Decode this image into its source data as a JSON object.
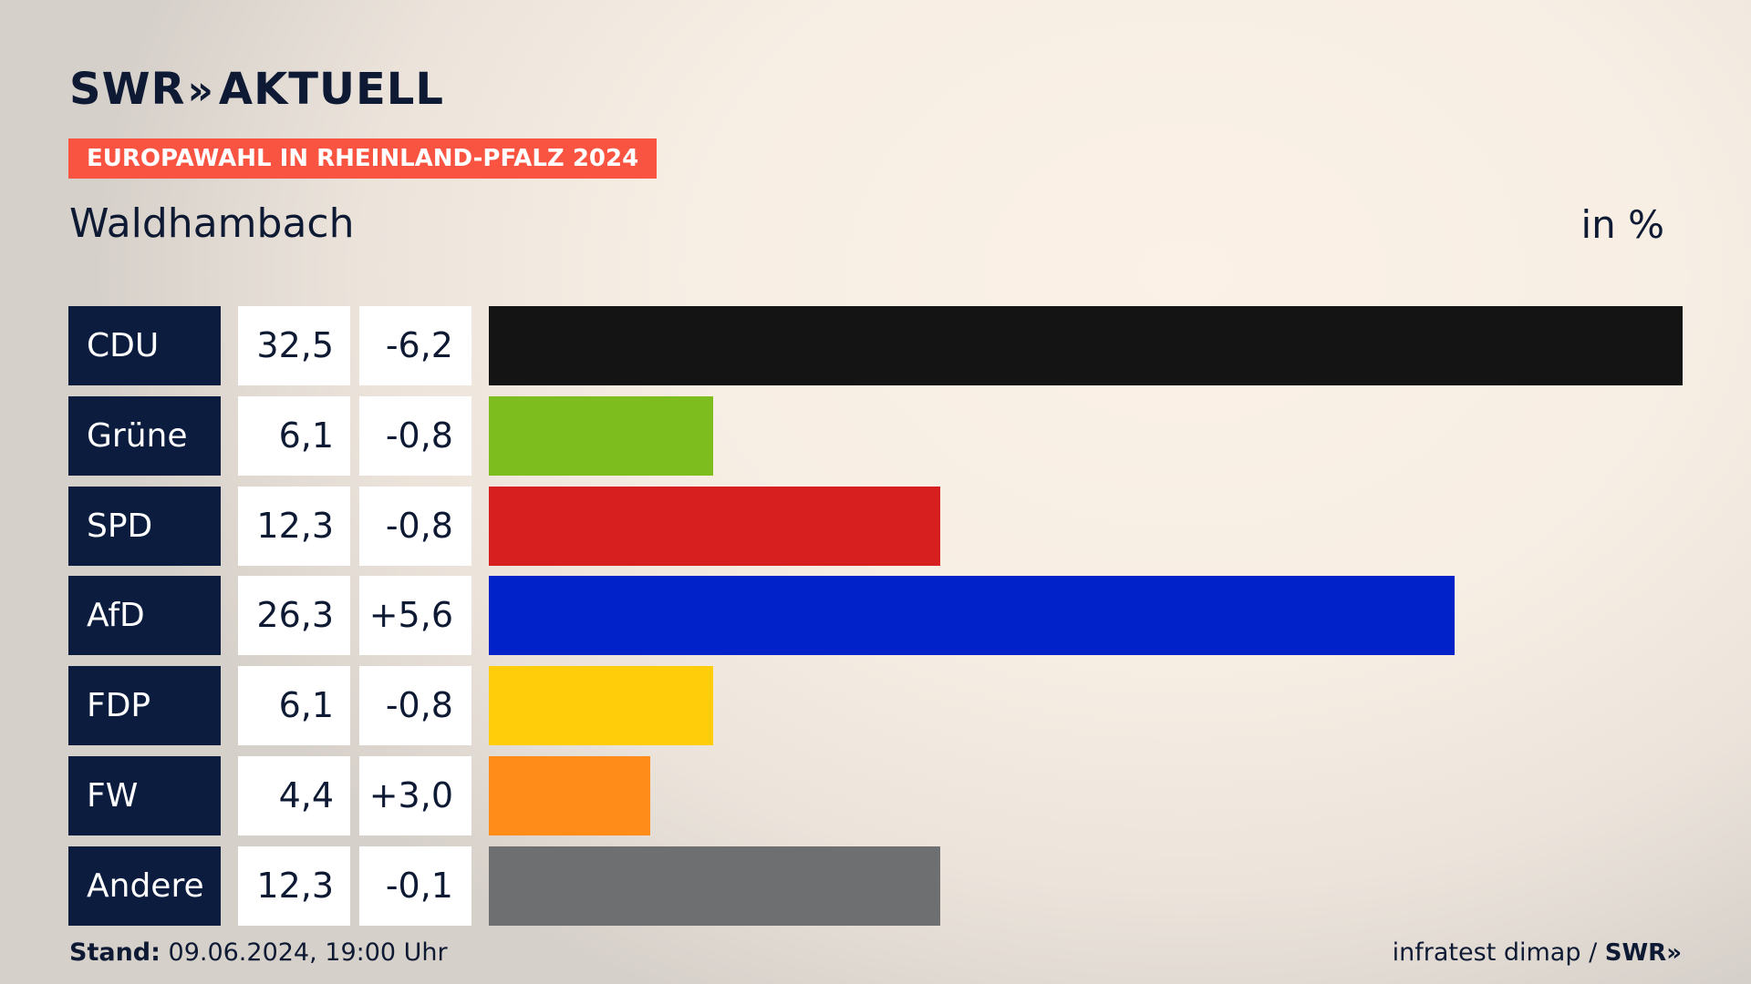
{
  "header": {
    "logo_text": "SWR",
    "logo_chevrons": "»",
    "logo_suffix": "AKTUELL",
    "badge": "EUROPAWAHL IN RHEINLAND-PFALZ 2024",
    "place": "Waldhambach",
    "unit": "in %"
  },
  "chart_data": {
    "type": "bar",
    "orientation": "horizontal",
    "title": "Waldhambach",
    "categories": [
      "CDU",
      "Grüne",
      "SPD",
      "AfD",
      "FDP",
      "FW",
      "Andere"
    ],
    "values": [
      32.5,
      6.1,
      12.3,
      26.3,
      6.1,
      4.4,
      12.3
    ],
    "values_label": [
      "32,5",
      "6,1",
      "12,3",
      "26,3",
      "6,1",
      "4,4",
      "12,3"
    ],
    "change": [
      -6.2,
      -0.8,
      -0.8,
      5.6,
      -0.8,
      3.0,
      -0.1
    ],
    "change_label": [
      "-6,2",
      "-0,8",
      "-0,8",
      "+5,6",
      "-0,8",
      "+3,0",
      "-0,1"
    ],
    "colors": [
      "#141414",
      "#7dbd1e",
      "#d81f1f",
      "#0022c8",
      "#ffcd0a",
      "#ff8c19",
      "#6e6f71"
    ],
    "unit": "in %",
    "xlim": [
      0,
      32.5
    ]
  },
  "footer": {
    "stand_label": "Stand:",
    "stand_value": "09.06.2024, 19:00 Uhr",
    "source": "infratest dimap / ",
    "source_logo": "SWR»"
  }
}
